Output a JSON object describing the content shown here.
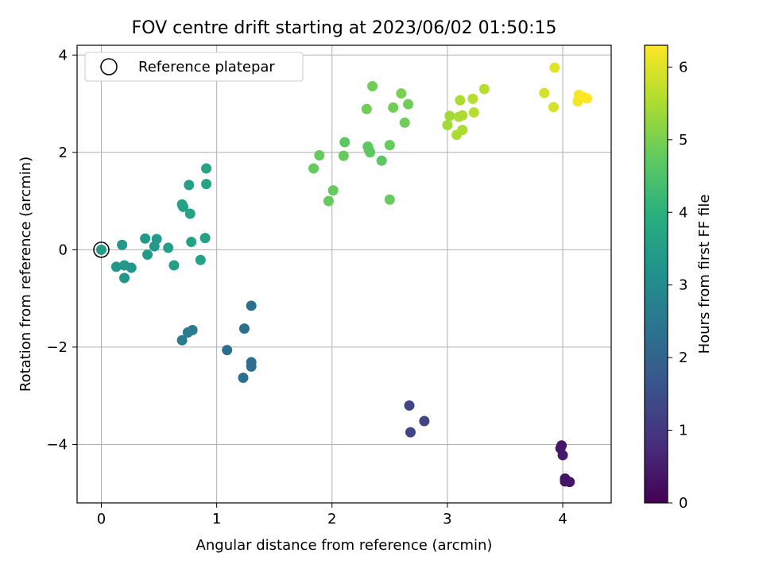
{
  "chart_data": {
    "type": "scatter",
    "title": "FOV centre drift starting at 2023/06/02 01:50:15",
    "xlabel": "Angular distance from reference (arcmin)",
    "ylabel": "Rotation from reference (arcmin)",
    "xlim": [
      -0.21,
      4.42
    ],
    "ylim": [
      -5.2,
      4.2
    ],
    "xticks": [
      0,
      1,
      2,
      3,
      4
    ],
    "yticks": [
      -4,
      -2,
      0,
      2,
      4
    ],
    "grid": true,
    "legend": {
      "placement": "top-left",
      "entries": [
        "Reference platepar"
      ]
    },
    "reference_point": {
      "x": 0,
      "y": 0
    },
    "colorbar": {
      "label": "Hours from first FF file",
      "range": [
        0,
        6.3
      ],
      "ticks": [
        0,
        1,
        2,
        3,
        4,
        5,
        6
      ],
      "colormap": "viridis"
    },
    "points": [
      {
        "x": 3.99,
        "y": -4.02,
        "h": 0.4
      },
      {
        "x": 3.98,
        "y": -4.08,
        "h": 0.4
      },
      {
        "x": 4.0,
        "y": -4.22,
        "h": 0.45
      },
      {
        "x": 4.02,
        "y": -4.7,
        "h": 0.35
      },
      {
        "x": 4.02,
        "y": -4.76,
        "h": 0.35
      },
      {
        "x": 4.06,
        "y": -4.77,
        "h": 0.35
      },
      {
        "x": 2.67,
        "y": -3.2,
        "h": 1.3
      },
      {
        "x": 2.68,
        "y": -3.75,
        "h": 1.3
      },
      {
        "x": 2.8,
        "y": -3.52,
        "h": 1.3
      },
      {
        "x": 1.3,
        "y": -1.15,
        "h": 2.3
      },
      {
        "x": 1.24,
        "y": -1.62,
        "h": 2.3
      },
      {
        "x": 1.09,
        "y": -2.06,
        "h": 2.3
      },
      {
        "x": 1.3,
        "y": -2.31,
        "h": 2.3
      },
      {
        "x": 1.3,
        "y": -2.4,
        "h": 2.3
      },
      {
        "x": 1.23,
        "y": -2.63,
        "h": 2.3
      },
      {
        "x": 0.7,
        "y": -1.86,
        "h": 2.6
      },
      {
        "x": 0.75,
        "y": -1.7,
        "h": 2.6
      },
      {
        "x": 0.79,
        "y": -1.65,
        "h": 2.6
      },
      {
        "x": 0.13,
        "y": -0.35,
        "h": 3.3
      },
      {
        "x": 0.18,
        "y": 0.1,
        "h": 3.3
      },
      {
        "x": 0.2,
        "y": -0.32,
        "h": 3.3
      },
      {
        "x": 0.2,
        "y": -0.58,
        "h": 3.3
      },
      {
        "x": 0.26,
        "y": -0.37,
        "h": 3.3
      },
      {
        "x": 0.38,
        "y": 0.23,
        "h": 3.4
      },
      {
        "x": 0.4,
        "y": -0.1,
        "h": 3.4
      },
      {
        "x": 0.46,
        "y": 0.07,
        "h": 3.4
      },
      {
        "x": 0.48,
        "y": 0.22,
        "h": 3.4
      },
      {
        "x": 0.58,
        "y": 0.04,
        "h": 3.5
      },
      {
        "x": 0.63,
        "y": -0.32,
        "h": 3.5
      },
      {
        "x": 0.7,
        "y": 0.93,
        "h": 3.6
      },
      {
        "x": 0.71,
        "y": 0.88,
        "h": 3.6
      },
      {
        "x": 0.76,
        "y": 1.33,
        "h": 3.6
      },
      {
        "x": 0.77,
        "y": 0.74,
        "h": 3.6
      },
      {
        "x": 0.78,
        "y": 0.16,
        "h": 3.6
      },
      {
        "x": 0.86,
        "y": -0.21,
        "h": 3.6
      },
      {
        "x": 0.9,
        "y": 0.24,
        "h": 3.6
      },
      {
        "x": 0.91,
        "y": 1.67,
        "h": 3.7
      },
      {
        "x": 0.91,
        "y": 1.35,
        "h": 3.7
      },
      {
        "x": 1.84,
        "y": 1.67,
        "h": 4.8
      },
      {
        "x": 1.89,
        "y": 1.94,
        "h": 4.8
      },
      {
        "x": 1.97,
        "y": 1.0,
        "h": 4.8
      },
      {
        "x": 2.01,
        "y": 1.22,
        "h": 4.8
      },
      {
        "x": 2.1,
        "y": 1.93,
        "h": 4.8
      },
      {
        "x": 2.11,
        "y": 2.21,
        "h": 4.7
      },
      {
        "x": 2.3,
        "y": 2.89,
        "h": 4.9
      },
      {
        "x": 2.31,
        "y": 2.12,
        "h": 4.7
      },
      {
        "x": 2.32,
        "y": 2.05,
        "h": 4.7
      },
      {
        "x": 2.33,
        "y": 2.0,
        "h": 4.7
      },
      {
        "x": 2.35,
        "y": 3.36,
        "h": 4.9
      },
      {
        "x": 2.43,
        "y": 1.83,
        "h": 4.7
      },
      {
        "x": 2.5,
        "y": 2.15,
        "h": 4.8
      },
      {
        "x": 2.5,
        "y": 1.03,
        "h": 4.8
      },
      {
        "x": 2.53,
        "y": 2.92,
        "h": 4.9
      },
      {
        "x": 2.6,
        "y": 3.21,
        "h": 5.0
      },
      {
        "x": 2.63,
        "y": 2.61,
        "h": 4.9
      },
      {
        "x": 2.66,
        "y": 2.99,
        "h": 4.9
      },
      {
        "x": 3.0,
        "y": 2.56,
        "h": 5.4
      },
      {
        "x": 3.02,
        "y": 2.75,
        "h": 5.4
      },
      {
        "x": 3.08,
        "y": 2.36,
        "h": 5.5
      },
      {
        "x": 3.1,
        "y": 2.73,
        "h": 5.5
      },
      {
        "x": 3.11,
        "y": 3.07,
        "h": 5.5
      },
      {
        "x": 3.13,
        "y": 2.46,
        "h": 5.5
      },
      {
        "x": 3.13,
        "y": 2.76,
        "h": 5.5
      },
      {
        "x": 3.22,
        "y": 3.1,
        "h": 5.6
      },
      {
        "x": 3.23,
        "y": 2.82,
        "h": 5.6
      },
      {
        "x": 3.32,
        "y": 3.3,
        "h": 5.6
      },
      {
        "x": 3.84,
        "y": 3.22,
        "h": 5.9
      },
      {
        "x": 3.92,
        "y": 2.93,
        "h": 5.9
      },
      {
        "x": 3.93,
        "y": 3.74,
        "h": 6.0
      },
      {
        "x": 4.13,
        "y": 3.05,
        "h": 6.2
      },
      {
        "x": 4.14,
        "y": 3.18,
        "h": 6.2
      },
      {
        "x": 4.18,
        "y": 3.14,
        "h": 6.3
      },
      {
        "x": 4.21,
        "y": 3.11,
        "h": 6.3
      }
    ]
  }
}
